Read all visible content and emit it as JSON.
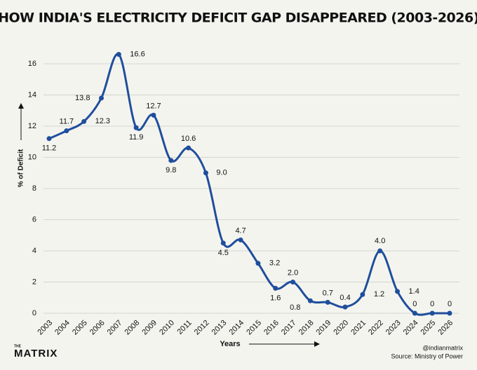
{
  "chart_data": {
    "type": "line",
    "title": "HOW INDIA'S ELECTRICITY DEFICIT GAP DISAPPEARED (2003-2026)",
    "x_label": "Years",
    "y_label": "% of Deficit",
    "categories": [
      "2003",
      "2004",
      "2005",
      "2006",
      "2007",
      "2008",
      "2009",
      "2010",
      "2011",
      "2012",
      "2013",
      "2014",
      "2015",
      "2016",
      "2017",
      "2018",
      "2019",
      "2020",
      "2021",
      "2022",
      "2023",
      "2024",
      "2025",
      "2026"
    ],
    "series": [
      {
        "name": "% of Deficit",
        "color": "#1f4e9c",
        "values": [
          11.2,
          11.7,
          12.3,
          13.8,
          16.6,
          11.9,
          12.7,
          9.8,
          10.6,
          9.0,
          4.5,
          4.7,
          3.2,
          1.6,
          2.0,
          0.8,
          0.7,
          0.4,
          1.2,
          4.0,
          1.4,
          0,
          0,
          0
        ],
        "value_labels": [
          "11.2",
          "11.7",
          "12.3",
          "13.8",
          "16.6",
          "11.9",
          "12.7",
          "9.8",
          "10.6",
          "9.0",
          "4.5",
          "4.7",
          "3.2",
          "1.6",
          "2.0",
          "0.8",
          "0.7",
          "0.4",
          "1.2",
          "4.0",
          "1.4",
          "0",
          "0",
          "0"
        ]
      }
    ],
    "ylim": [
      0,
      16
    ],
    "yticks": [
      0,
      2,
      4,
      6,
      8,
      10,
      12,
      14,
      16
    ],
    "grid": true
  },
  "footer": {
    "logo_small": "THE",
    "logo": "MATRIX",
    "handle": "@indianmatrix",
    "source": "Source: Ministry of Power"
  }
}
